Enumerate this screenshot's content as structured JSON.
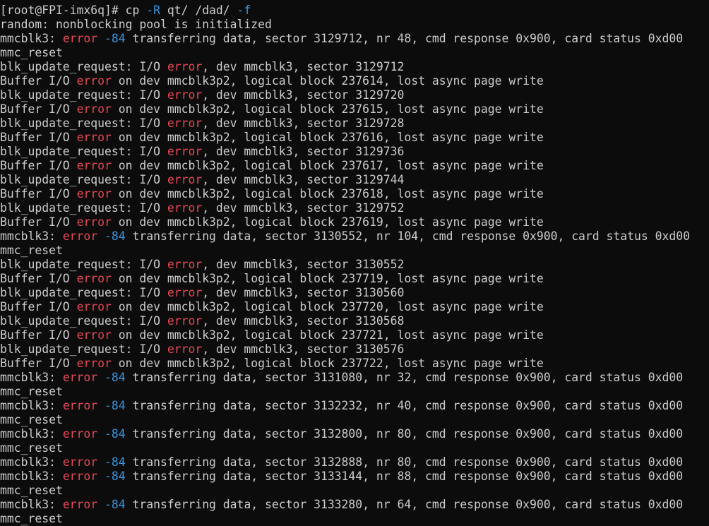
{
  "terminal": {
    "colors": {
      "background": "#0c0c0c",
      "default": "#cccccc",
      "red": "#e74856",
      "blue": "#3a96dd"
    },
    "lines": [
      [
        {
          "t": "[root@FPI-imx6q]# cp ",
          "c": "default"
        },
        {
          "t": "-R",
          "c": "blue"
        },
        {
          "t": " qt/ /dad/ ",
          "c": "default"
        },
        {
          "t": "-f",
          "c": "blue"
        }
      ],
      [
        {
          "t": "random: nonblocking pool is initialized",
          "c": "default"
        }
      ],
      [
        {
          "t": "mmcblk3: ",
          "c": "default"
        },
        {
          "t": "error",
          "c": "red"
        },
        {
          "t": " ",
          "c": "default"
        },
        {
          "t": "-84",
          "c": "blue"
        },
        {
          "t": " transferring data, sector 3129712, nr 48, cmd response 0x900, card status 0xd00",
          "c": "default"
        }
      ],
      [
        {
          "t": "mmc_reset",
          "c": "default"
        }
      ],
      [
        {
          "t": "blk_update_request: I/O ",
          "c": "default"
        },
        {
          "t": "error",
          "c": "red"
        },
        {
          "t": ", dev mmcblk3, sector 3129712",
          "c": "default"
        }
      ],
      [
        {
          "t": "Buffer I/O ",
          "c": "default"
        },
        {
          "t": "error",
          "c": "red"
        },
        {
          "t": " on dev mmcblk3p2, logical block 237614, lost async page write",
          "c": "default"
        }
      ],
      [
        {
          "t": "blk_update_request: I/O ",
          "c": "default"
        },
        {
          "t": "error",
          "c": "red"
        },
        {
          "t": ", dev mmcblk3, sector 3129720",
          "c": "default"
        }
      ],
      [
        {
          "t": "Buffer I/O ",
          "c": "default"
        },
        {
          "t": "error",
          "c": "red"
        },
        {
          "t": " on dev mmcblk3p2, logical block 237615, lost async page write",
          "c": "default"
        }
      ],
      [
        {
          "t": "blk_update_request: I/O ",
          "c": "default"
        },
        {
          "t": "error",
          "c": "red"
        },
        {
          "t": ", dev mmcblk3, sector 3129728",
          "c": "default"
        }
      ],
      [
        {
          "t": "Buffer I/O ",
          "c": "default"
        },
        {
          "t": "error",
          "c": "red"
        },
        {
          "t": " on dev mmcblk3p2, logical block 237616, lost async page write",
          "c": "default"
        }
      ],
      [
        {
          "t": "blk_update_request: I/O ",
          "c": "default"
        },
        {
          "t": "error",
          "c": "red"
        },
        {
          "t": ", dev mmcblk3, sector 3129736",
          "c": "default"
        }
      ],
      [
        {
          "t": "Buffer I/O ",
          "c": "default"
        },
        {
          "t": "error",
          "c": "red"
        },
        {
          "t": " on dev mmcblk3p2, logical block 237617, lost async page write",
          "c": "default"
        }
      ],
      [
        {
          "t": "blk_update_request: I/O ",
          "c": "default"
        },
        {
          "t": "error",
          "c": "red"
        },
        {
          "t": ", dev mmcblk3, sector 3129744",
          "c": "default"
        }
      ],
      [
        {
          "t": "Buffer I/O ",
          "c": "default"
        },
        {
          "t": "error",
          "c": "red"
        },
        {
          "t": " on dev mmcblk3p2, logical block 237618, lost async page write",
          "c": "default"
        }
      ],
      [
        {
          "t": "blk_update_request: I/O ",
          "c": "default"
        },
        {
          "t": "error",
          "c": "red"
        },
        {
          "t": ", dev mmcblk3, sector 3129752",
          "c": "default"
        }
      ],
      [
        {
          "t": "Buffer I/O ",
          "c": "default"
        },
        {
          "t": "error",
          "c": "red"
        },
        {
          "t": " on dev mmcblk3p2, logical block 237619, lost async page write",
          "c": "default"
        }
      ],
      [
        {
          "t": "mmcblk3: ",
          "c": "default"
        },
        {
          "t": "error",
          "c": "red"
        },
        {
          "t": " ",
          "c": "default"
        },
        {
          "t": "-84",
          "c": "blue"
        },
        {
          "t": " transferring data, sector 3130552, nr 104, cmd response 0x900, card status 0xd00",
          "c": "default"
        }
      ],
      [
        {
          "t": "mmc_reset",
          "c": "default"
        }
      ],
      [
        {
          "t": "blk_update_request: I/O ",
          "c": "default"
        },
        {
          "t": "error",
          "c": "red"
        },
        {
          "t": ", dev mmcblk3, sector 3130552",
          "c": "default"
        }
      ],
      [
        {
          "t": "Buffer I/O ",
          "c": "default"
        },
        {
          "t": "error",
          "c": "red"
        },
        {
          "t": " on dev mmcblk3p2, logical block 237719, lost async page write",
          "c": "default"
        }
      ],
      [
        {
          "t": "blk_update_request: I/O ",
          "c": "default"
        },
        {
          "t": "error",
          "c": "red"
        },
        {
          "t": ", dev mmcblk3, sector 3130560",
          "c": "default"
        }
      ],
      [
        {
          "t": "Buffer I/O ",
          "c": "default"
        },
        {
          "t": "error",
          "c": "red"
        },
        {
          "t": " on dev mmcblk3p2, logical block 237720, lost async page write",
          "c": "default"
        }
      ],
      [
        {
          "t": "blk_update_request: I/O ",
          "c": "default"
        },
        {
          "t": "error",
          "c": "red"
        },
        {
          "t": ", dev mmcblk3, sector 3130568",
          "c": "default"
        }
      ],
      [
        {
          "t": "Buffer I/O ",
          "c": "default"
        },
        {
          "t": "error",
          "c": "red"
        },
        {
          "t": " on dev mmcblk3p2, logical block 237721, lost async page write",
          "c": "default"
        }
      ],
      [
        {
          "t": "blk_update_request: I/O ",
          "c": "default"
        },
        {
          "t": "error",
          "c": "red"
        },
        {
          "t": ", dev mmcblk3, sector 3130576",
          "c": "default"
        }
      ],
      [
        {
          "t": "Buffer I/O ",
          "c": "default"
        },
        {
          "t": "error",
          "c": "red"
        },
        {
          "t": " on dev mmcblk3p2, logical block 237722, lost async page write",
          "c": "default"
        }
      ],
      [
        {
          "t": "mmcblk3: ",
          "c": "default"
        },
        {
          "t": "error",
          "c": "red"
        },
        {
          "t": " ",
          "c": "default"
        },
        {
          "t": "-84",
          "c": "blue"
        },
        {
          "t": " transferring data, sector 3131080, nr 32, cmd response 0x900, card status 0xd00",
          "c": "default"
        }
      ],
      [
        {
          "t": "mmc_reset",
          "c": "default"
        }
      ],
      [
        {
          "t": "mmcblk3: ",
          "c": "default"
        },
        {
          "t": "error",
          "c": "red"
        },
        {
          "t": " ",
          "c": "default"
        },
        {
          "t": "-84",
          "c": "blue"
        },
        {
          "t": " transferring data, sector 3132232, nr 40, cmd response 0x900, card status 0xd00",
          "c": "default"
        }
      ],
      [
        {
          "t": "mmc_reset",
          "c": "default"
        }
      ],
      [
        {
          "t": "mmcblk3: ",
          "c": "default"
        },
        {
          "t": "error",
          "c": "red"
        },
        {
          "t": " ",
          "c": "default"
        },
        {
          "t": "-84",
          "c": "blue"
        },
        {
          "t": " transferring data, sector 3132800, nr 80, cmd response 0x900, card status 0xd00",
          "c": "default"
        }
      ],
      [
        {
          "t": "mmc_reset",
          "c": "default"
        }
      ],
      [
        {
          "t": "mmcblk3: ",
          "c": "default"
        },
        {
          "t": "error",
          "c": "red"
        },
        {
          "t": " ",
          "c": "default"
        },
        {
          "t": "-84",
          "c": "blue"
        },
        {
          "t": " transferring data, sector 3132888, nr 80, cmd response 0x900, card status 0xd00",
          "c": "default"
        }
      ],
      [
        {
          "t": "mmcblk3: ",
          "c": "default"
        },
        {
          "t": "error",
          "c": "red"
        },
        {
          "t": " ",
          "c": "default"
        },
        {
          "t": "-84",
          "c": "blue"
        },
        {
          "t": " transferring data, sector 3133144, nr 88, cmd response 0x900, card status 0xd00",
          "c": "default"
        }
      ],
      [
        {
          "t": "mmc_reset",
          "c": "default"
        }
      ],
      [
        {
          "t": "mmcblk3: ",
          "c": "default"
        },
        {
          "t": "error",
          "c": "red"
        },
        {
          "t": " ",
          "c": "default"
        },
        {
          "t": "-84",
          "c": "blue"
        },
        {
          "t": " transferring data, sector 3133280, nr 64, cmd response 0x900, card status 0xd00",
          "c": "default"
        }
      ],
      [
        {
          "t": "mmc_reset",
          "c": "default"
        }
      ]
    ]
  }
}
